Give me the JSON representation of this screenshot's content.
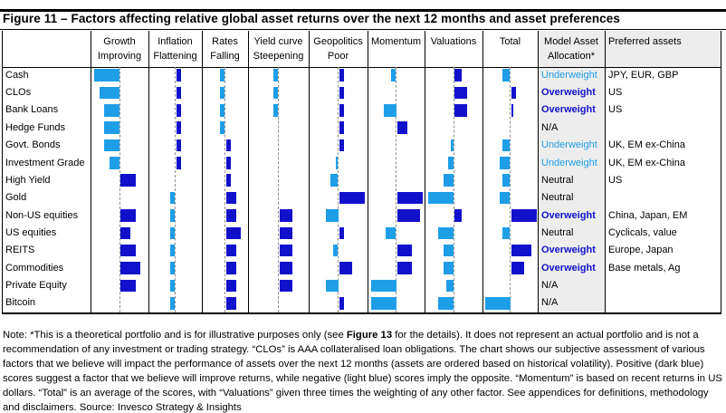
{
  "title": "Figure 11 – Factors affecting relative global asset returns over the next 12 months and asset preferences",
  "colors": {
    "positive_dark_blue": "#1111cb",
    "negative_light_blue": "#1f9ee8",
    "shaded_column_bg": "#ededed",
    "border": "#000000"
  },
  "table": {
    "columns": [
      {
        "line1": "Growth",
        "line2": "Improving"
      },
      {
        "line1": "Inflation",
        "line2": "Flattening"
      },
      {
        "line1": "Rates",
        "line2": "Falling"
      },
      {
        "line1": "Yield curve",
        "line2": "Steepening"
      },
      {
        "line1": "Geopolitics",
        "line2": "Poor"
      },
      {
        "line1": "Momentum",
        "line2": ""
      },
      {
        "line1": "Valuations",
        "line2": ""
      },
      {
        "line1": "Total",
        "line2": ""
      },
      {
        "line1": "Model Asset",
        "line2": "Allocation*"
      },
      {
        "line1": "Preferred assets",
        "line2": ""
      }
    ],
    "rows": [
      {
        "asset": "Cash",
        "allocation": "Underweight",
        "preferred": "JPY, EUR, GBP"
      },
      {
        "asset": "CLOs",
        "allocation": "Overweight",
        "preferred": "US"
      },
      {
        "asset": "Bank Loans",
        "allocation": "Overweight",
        "preferred": "US"
      },
      {
        "asset": "Hedge Funds",
        "allocation": "N/A",
        "preferred": ""
      },
      {
        "asset": "Govt. Bonds",
        "allocation": "Underweight",
        "preferred": "UK, EM ex-China"
      },
      {
        "asset": "Investment Grade",
        "allocation": "Underweight",
        "preferred": "UK, EM ex-China"
      },
      {
        "asset": "High Yield",
        "allocation": "Neutral",
        "preferred": "US"
      },
      {
        "asset": "Gold",
        "allocation": "Neutral",
        "preferred": ""
      },
      {
        "asset": "Non-US equities",
        "allocation": "Overweight",
        "preferred": "China, Japan, EM"
      },
      {
        "asset": "US equities",
        "allocation": "Neutral",
        "preferred": "Cyclicals, value"
      },
      {
        "asset": "REITS",
        "allocation": "Overweight",
        "preferred": "Europe, Japan"
      },
      {
        "asset": "Commodities",
        "allocation": "Overweight",
        "preferred": "Base metals, Ag"
      },
      {
        "asset": "Private Equity",
        "allocation": "N/A",
        "preferred": ""
      },
      {
        "asset": "Bitcoin",
        "allocation": "N/A",
        "preferred": ""
      }
    ]
  },
  "chart_data": {
    "type": "bar",
    "orientation": "horizontal",
    "value_range": [
      -5,
      5
    ],
    "categories": [
      "Cash",
      "CLOs",
      "Bank Loans",
      "Hedge Funds",
      "Govt. Bonds",
      "Investment Grade",
      "High Yield",
      "Gold",
      "Non-US equities",
      "US equities",
      "REITS",
      "Commodities",
      "Private Equity",
      "Bitcoin"
    ],
    "series": [
      {
        "name": "Growth Improving",
        "values": [
          -5,
          -4,
          -3,
          -3,
          -3,
          -2,
          3,
          0,
          3,
          2,
          3,
          4,
          3,
          0
        ]
      },
      {
        "name": "Inflation Flattening",
        "values": [
          1,
          1,
          1,
          1,
          1,
          1,
          0,
          -1,
          -1,
          -1,
          -1,
          -1,
          -1,
          -1
        ]
      },
      {
        "name": "Rates Falling",
        "values": [
          -1,
          -1,
          -1,
          -1,
          1,
          1,
          1,
          2,
          2,
          3,
          2,
          2,
          2,
          2
        ]
      },
      {
        "name": "Yield curve Steepening",
        "values": [
          -1,
          -1,
          -1,
          0,
          0,
          0,
          0,
          0,
          2.5,
          2.5,
          2.5,
          2.5,
          2.5,
          0
        ]
      },
      {
        "name": "Geopolitics Poor",
        "values": [
          1,
          1,
          1,
          1,
          1,
          -0.5,
          -1.5,
          5,
          -2.5,
          1,
          -1,
          2.5,
          -2.5,
          1
        ]
      },
      {
        "name": "Momentum",
        "values": [
          -1,
          0,
          -2.5,
          2,
          0,
          0,
          0,
          5,
          4.5,
          -2,
          3,
          3,
          -5,
          -5
        ]
      },
      {
        "name": "Valuations",
        "values": [
          1.5,
          2.5,
          2.5,
          0,
          -0.5,
          -1,
          -2,
          -5,
          1.5,
          -3,
          -2,
          -2,
          -1.5,
          -3
        ]
      },
      {
        "name": "Total",
        "values": [
          -1.5,
          1,
          0.5,
          0,
          -1.5,
          -2,
          -1.5,
          -2,
          5,
          -1.5,
          4,
          2.5,
          0,
          -5
        ]
      }
    ],
    "title": "Factors affecting relative global asset returns over the next 12 months and asset preferences",
    "legend": {
      "positive": "dark blue = factor expected to improve returns",
      "negative": "light blue = factor expected to reduce returns"
    },
    "grid": false
  },
  "note": {
    "pre": "Note: *This is a theoretical portfolio and is for illustrative purposes only (see ",
    "bold": "Figure 13",
    "post": " for the details). It does not represent an actual portfolio and is not a recommendation of any investment or trading strategy. “CLOs” is AAA collateralised loan obligations. The chart shows our subjective assessment of various factors that we believe will impact the performance of assets over the next 12 months (assets are ordered based on historical volatility). Positive (dark blue) scores suggest a factor that we believe will improve returns, while negative (light blue) scores imply the opposite. “Momentum” is based on recent returns in US dollars. “Total” is an average of the scores, with “Valuations” given three times the weighting of any other factor. See appendices for definitions, methodology and disclaimers. Source: Invesco Strategy & Insights"
  }
}
